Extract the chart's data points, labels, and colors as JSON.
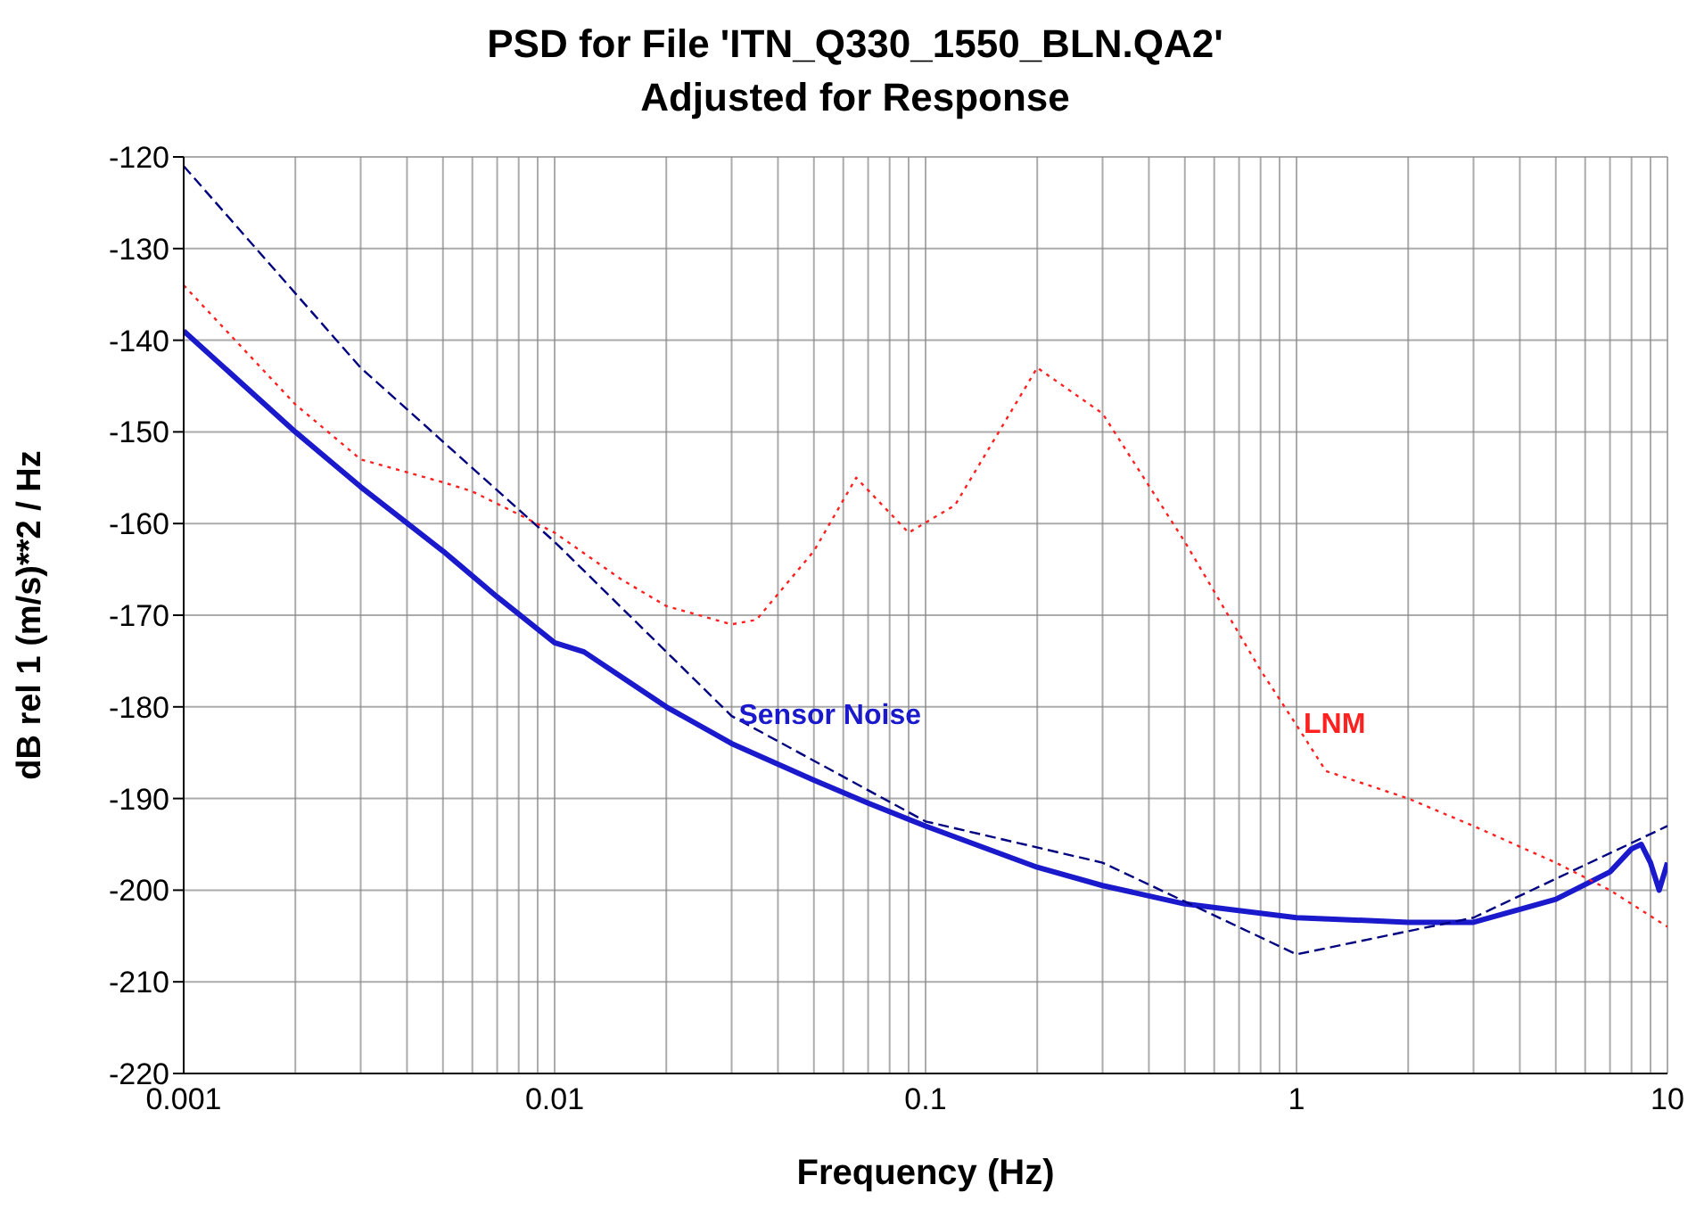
{
  "chart_data": {
    "type": "line",
    "title": "PSD for File 'ITN_Q330_1550_BLN.QA2'",
    "subtitle": "Adjusted for Response",
    "xlabel": "Frequency (Hz)",
    "ylabel": "dB rel 1 (m/s)**2 / Hz",
    "log": "x",
    "grid": true,
    "marker": "none",
    "xlim": [
      0.001,
      10
    ],
    "ylim": [
      -220,
      -120
    ],
    "xticks": [
      0.001,
      {
        "value": 0.002,
        "label": null
      },
      {
        "value": 0.003,
        "label": null
      },
      {
        "value": 0.004,
        "label": null
      },
      {
        "value": 0.005,
        "label": null
      },
      {
        "value": 0.006,
        "label": null
      },
      {
        "value": 0.007,
        "label": null
      },
      {
        "value": 0.008,
        "label": null
      },
      {
        "value": 0.009,
        "label": null
      },
      0.01,
      {
        "value": 0.02,
        "label": null
      },
      {
        "value": 0.03,
        "label": null
      },
      {
        "value": 0.04,
        "label": null
      },
      {
        "value": 0.05,
        "label": null
      },
      {
        "value": 0.06,
        "label": null
      },
      {
        "value": 0.07,
        "label": null
      },
      {
        "value": 0.08,
        "label": null
      },
      {
        "value": 0.09,
        "label": null
      },
      0.1,
      {
        "value": 0.2,
        "label": null
      },
      {
        "value": 0.3,
        "label": null
      },
      {
        "value": 0.4,
        "label": null
      },
      {
        "value": 0.5,
        "label": null
      },
      {
        "value": 0.6,
        "label": null
      },
      {
        "value": 0.7,
        "label": null
      },
      {
        "value": 0.8,
        "label": null
      },
      {
        "value": 0.9,
        "label": null
      },
      1,
      {
        "value": 2,
        "label": null
      },
      {
        "value": 3,
        "label": null
      },
      {
        "value": 4,
        "label": null
      },
      {
        "value": 5,
        "label": null
      },
      {
        "value": 6,
        "label": null
      },
      {
        "value": 7,
        "label": null
      },
      {
        "value": 8,
        "label": null
      },
      {
        "value": 9,
        "label": null
      },
      10
    ],
    "yticks": [
      -220,
      -210,
      -200,
      -190,
      -180,
      -170,
      -160,
      -150,
      -140,
      -130,
      -120
    ],
    "annotations": [
      {
        "text": "Sensor Noise",
        "x": 0.03,
        "y": -181
      },
      {
        "text": "LNM",
        "x": 1,
        "y": -182
      }
    ],
    "series": [
      {
        "color": "#1a1acc",
        "line_style": "solid",
        "x": [
          0.001,
          0.002,
          0.003,
          0.005,
          0.007,
          0.01,
          0.012,
          0.02,
          0.03,
          0.05,
          0.07,
          0.1,
          0.2,
          0.3,
          0.5,
          1,
          2,
          3,
          5,
          7,
          8,
          8.5,
          9,
          9.5,
          10
        ],
        "values": [
          -139,
          -150,
          -156,
          -163,
          -168,
          -173,
          -174,
          -180,
          -184,
          -188,
          -190.5,
          -193,
          -197.5,
          -199.5,
          -201.5,
          -203,
          -203.5,
          -203.5,
          -201,
          -198,
          -195.5,
          -195,
          -197,
          -200,
          -197
        ]
      },
      {
        "color": "#000080",
        "line_style": "dashed",
        "x": [
          0.001,
          0.003,
          0.01,
          0.03,
          0.1,
          0.3,
          1,
          3,
          10
        ],
        "values": [
          -121,
          -143,
          -162,
          -181,
          -192.5,
          -197,
          -207,
          -203,
          -193
        ]
      },
      {
        "color": "#ff2020",
        "line_style": "dotted",
        "x": [
          0.001,
          0.002,
          0.003,
          0.005,
          0.006,
          0.008,
          0.01,
          0.015,
          0.02,
          0.03,
          0.035,
          0.05,
          0.065,
          0.09,
          0.12,
          0.2,
          0.3,
          0.5,
          0.8,
          1,
          1.2,
          2,
          3,
          5,
          7,
          10
        ],
        "values": [
          -134,
          -147,
          -153,
          -155.5,
          -156.5,
          -159,
          -161,
          -166,
          -169,
          -171,
          -170.5,
          -163,
          -155,
          -161,
          -158,
          -143,
          -148,
          -162,
          -176,
          -182,
          -187,
          -190,
          -193,
          -197,
          -200,
          -204
        ]
      }
    ]
  }
}
